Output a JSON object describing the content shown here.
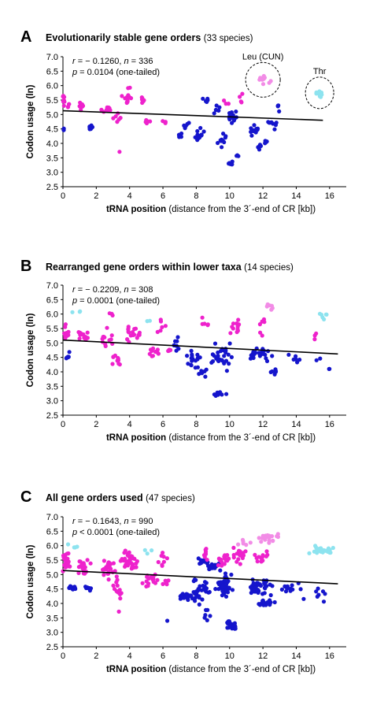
{
  "panels": [
    {
      "letter": "A",
      "title": "Evolutionarily stable gene orders",
      "subtitle": "(33 species)",
      "stat_r_label": "r",
      "stat_r_value": " = − 0.1260, ",
      "stat_n_label": "n",
      "stat_n_value": " = 336",
      "stat_p_label": "p",
      "stat_p_value": " = 0.0104 (one-tailed)",
      "annotations": [
        {
          "text": "Leu (CUN)"
        },
        {
          "text": "Thr"
        }
      ]
    },
    {
      "letter": "B",
      "title": "Rearranged gene orders within lower taxa",
      "subtitle": "(14 species)",
      "stat_r_label": "r",
      "stat_r_value": " = − 0.2209, ",
      "stat_n_label": "n",
      "stat_n_value": " = 308",
      "stat_p_label": "p",
      "stat_p_value": " = 0.0001 (one-tailed)",
      "annotations": []
    },
    {
      "letter": "C",
      "title": "All gene orders used",
      "subtitle": "(47 species)",
      "stat_r_label": "r",
      "stat_r_value": " = − 0.1643, ",
      "stat_n_label": "n",
      "stat_n_value": " = 990",
      "stat_p_label": "p",
      "stat_p_value": " < 0.0001 (one-tailed)",
      "annotations": []
    }
  ],
  "colors": {
    "magenta": "#ee22cc",
    "blue": "#1515cc",
    "pink": "#f28ce6",
    "cyan": "#8de3ef",
    "trend": "#000000"
  },
  "chart_data": [
    {
      "type": "scatter",
      "panel": "A",
      "xlabel": "tRNA position",
      "xlabel_detail": "(distance from the 3´-end of CR [kb])",
      "ylabel": "Codon usage (ln)",
      "xlim": [
        0,
        17
      ],
      "ylim": [
        2.5,
        7.0
      ],
      "xticks": [
        0,
        2,
        4,
        6,
        8,
        10,
        12,
        14,
        16
      ],
      "yticks": [
        2.5,
        3.0,
        3.5,
        4.0,
        4.5,
        5.0,
        5.5,
        6.0,
        6.5,
        7.0
      ],
      "trend": {
        "x": [
          0,
          15.6
        ],
        "y": [
          5.13,
          4.8
        ]
      },
      "clusters": [
        {
          "group": "magenta",
          "x": 0.05,
          "y": 5.5,
          "sx": 0.06,
          "sy": 0.25,
          "n": 10
        },
        {
          "group": "blue",
          "x": 0.05,
          "y": 4.5,
          "sx": 0.05,
          "sy": 0.05,
          "n": 2
        },
        {
          "group": "magenta",
          "x": 0.35,
          "y": 5.3,
          "sx": 0.08,
          "sy": 0.08,
          "n": 4
        },
        {
          "group": "magenta",
          "x": 1.1,
          "y": 5.3,
          "sx": 0.2,
          "sy": 0.12,
          "n": 10
        },
        {
          "group": "blue",
          "x": 1.6,
          "y": 4.55,
          "sx": 0.15,
          "sy": 0.06,
          "n": 8
        },
        {
          "group": "magenta",
          "x": 2.6,
          "y": 5.2,
          "sx": 0.3,
          "sy": 0.12,
          "n": 10
        },
        {
          "group": "magenta",
          "x": 3.3,
          "y": 4.9,
          "sx": 0.2,
          "sy": 0.15,
          "n": 6
        },
        {
          "group": "magenta",
          "x": 3.4,
          "y": 3.7,
          "sx": 0.03,
          "sy": 0.03,
          "n": 1
        },
        {
          "group": "magenta",
          "x": 3.9,
          "y": 5.6,
          "sx": 0.25,
          "sy": 0.25,
          "n": 16
        },
        {
          "group": "magenta",
          "x": 4.7,
          "y": 5.5,
          "sx": 0.15,
          "sy": 0.2,
          "n": 6
        },
        {
          "group": "magenta",
          "x": 5.1,
          "y": 4.78,
          "sx": 0.15,
          "sy": 0.08,
          "n": 6
        },
        {
          "group": "magenta",
          "x": 6.1,
          "y": 4.72,
          "sx": 0.15,
          "sy": 0.05,
          "n": 4
        },
        {
          "group": "blue",
          "x": 7.0,
          "y": 4.25,
          "sx": 0.2,
          "sy": 0.1,
          "n": 6
        },
        {
          "group": "blue",
          "x": 7.4,
          "y": 4.6,
          "sx": 0.2,
          "sy": 0.1,
          "n": 6
        },
        {
          "group": "blue",
          "x": 8.2,
          "y": 4.3,
          "sx": 0.3,
          "sy": 0.3,
          "n": 14
        },
        {
          "group": "blue",
          "x": 8.5,
          "y": 5.45,
          "sx": 0.2,
          "sy": 0.1,
          "n": 5
        },
        {
          "group": "blue",
          "x": 9.3,
          "y": 5.2,
          "sx": 0.3,
          "sy": 0.2,
          "n": 6
        },
        {
          "group": "blue",
          "x": 9.6,
          "y": 4.1,
          "sx": 0.3,
          "sy": 0.3,
          "n": 10
        },
        {
          "group": "blue",
          "x": 10.2,
          "y": 4.9,
          "sx": 0.3,
          "sy": 0.25,
          "n": 14
        },
        {
          "group": "blue",
          "x": 10.1,
          "y": 3.3,
          "sx": 0.15,
          "sy": 0.08,
          "n": 8
        },
        {
          "group": "blue",
          "x": 10.5,
          "y": 3.6,
          "sx": 0.1,
          "sy": 0.1,
          "n": 3
        },
        {
          "group": "magenta",
          "x": 9.7,
          "y": 5.45,
          "sx": 0.15,
          "sy": 0.1,
          "n": 3
        },
        {
          "group": "magenta",
          "x": 10.7,
          "y": 5.6,
          "sx": 0.15,
          "sy": 0.15,
          "n": 4
        },
        {
          "group": "blue",
          "x": 11.5,
          "y": 4.45,
          "sx": 0.25,
          "sy": 0.2,
          "n": 10
        },
        {
          "group": "blue",
          "x": 11.8,
          "y": 3.9,
          "sx": 0.15,
          "sy": 0.08,
          "n": 6
        },
        {
          "group": "blue",
          "x": 12.2,
          "y": 4.1,
          "sx": 0.15,
          "sy": 0.1,
          "n": 5
        },
        {
          "group": "blue",
          "x": 12.6,
          "y": 4.7,
          "sx": 0.3,
          "sy": 0.15,
          "n": 8
        },
        {
          "group": "blue",
          "x": 12.9,
          "y": 5.3,
          "sx": 0.15,
          "sy": 0.15,
          "n": 4
        },
        {
          "group": "pink",
          "x": 12.0,
          "y": 6.25,
          "sx": 0.4,
          "sy": 0.18,
          "n": 12
        },
        {
          "group": "cyan",
          "x": 15.4,
          "y": 5.75,
          "sx": 0.18,
          "sy": 0.15,
          "n": 10
        }
      ]
    },
    {
      "type": "scatter",
      "panel": "B",
      "xlabel": "tRNA position",
      "xlabel_detail": "(distance from the 3´-end of CR [kb])",
      "ylabel": "Codon usage (ln)",
      "xlim": [
        0,
        17
      ],
      "ylim": [
        2.5,
        7.0
      ],
      "xticks": [
        0,
        2,
        4,
        6,
        8,
        10,
        12,
        14,
        16
      ],
      "yticks": [
        2.5,
        3.0,
        3.5,
        4.0,
        4.5,
        5.0,
        5.5,
        6.0,
        6.5,
        7.0
      ],
      "trend": {
        "x": [
          0,
          16.5
        ],
        "y": [
          5.1,
          4.62
        ]
      },
      "clusters": [
        {
          "group": "magenta",
          "x": 0.2,
          "y": 5.4,
          "sx": 0.15,
          "sy": 0.25,
          "n": 14
        },
        {
          "group": "blue",
          "x": 0.3,
          "y": 4.55,
          "sx": 0.15,
          "sy": 0.1,
          "n": 6
        },
        {
          "group": "magenta",
          "x": 1.3,
          "y": 5.3,
          "sx": 0.4,
          "sy": 0.25,
          "n": 12
        },
        {
          "group": "magenta",
          "x": 2.7,
          "y": 5.2,
          "sx": 0.4,
          "sy": 0.35,
          "n": 12
        },
        {
          "group": "magenta",
          "x": 3.3,
          "y": 4.4,
          "sx": 0.3,
          "sy": 0.4,
          "n": 10
        },
        {
          "group": "magenta",
          "x": 3.0,
          "y": 6.0,
          "sx": 0.3,
          "sy": 0.1,
          "n": 3
        },
        {
          "group": "magenta",
          "x": 4.3,
          "y": 5.3,
          "sx": 0.5,
          "sy": 0.3,
          "n": 18
        },
        {
          "group": "magenta",
          "x": 5.5,
          "y": 4.7,
          "sx": 0.35,
          "sy": 0.15,
          "n": 10
        },
        {
          "group": "magenta",
          "x": 6.0,
          "y": 5.6,
          "sx": 0.3,
          "sy": 0.2,
          "n": 6
        },
        {
          "group": "magenta",
          "x": 6.4,
          "y": 4.7,
          "sx": 0.15,
          "sy": 0.15,
          "n": 4
        },
        {
          "group": "blue",
          "x": 6.8,
          "y": 5.0,
          "sx": 0.25,
          "sy": 0.35,
          "n": 8
        },
        {
          "group": "blue",
          "x": 7.8,
          "y": 4.4,
          "sx": 0.4,
          "sy": 0.3,
          "n": 18
        },
        {
          "group": "blue",
          "x": 9.4,
          "y": 4.5,
          "sx": 0.6,
          "sy": 0.35,
          "n": 28
        },
        {
          "group": "blue",
          "x": 9.2,
          "y": 3.25,
          "sx": 0.6,
          "sy": 0.06,
          "n": 9
        },
        {
          "group": "blue",
          "x": 8.4,
          "y": 3.9,
          "sx": 0.3,
          "sy": 0.2,
          "n": 6
        },
        {
          "group": "magenta",
          "x": 10.4,
          "y": 5.5,
          "sx": 0.35,
          "sy": 0.25,
          "n": 12
        },
        {
          "group": "magenta",
          "x": 8.5,
          "y": 5.7,
          "sx": 0.3,
          "sy": 0.25,
          "n": 5
        },
        {
          "group": "blue",
          "x": 11.8,
          "y": 4.6,
          "sx": 0.7,
          "sy": 0.25,
          "n": 22
        },
        {
          "group": "blue",
          "x": 12.7,
          "y": 4.0,
          "sx": 0.5,
          "sy": 0.1,
          "n": 6
        },
        {
          "group": "blue",
          "x": 14.0,
          "y": 4.5,
          "sx": 0.4,
          "sy": 0.15,
          "n": 6
        },
        {
          "group": "blue",
          "x": 15.5,
          "y": 4.3,
          "sx": 0.5,
          "sy": 0.2,
          "n": 4
        },
        {
          "group": "magenta",
          "x": 12.0,
          "y": 5.6,
          "sx": 0.35,
          "sy": 0.25,
          "n": 6
        },
        {
          "group": "magenta",
          "x": 15.3,
          "y": 5.2,
          "sx": 0.25,
          "sy": 0.1,
          "n": 3
        },
        {
          "group": "pink",
          "x": 12.4,
          "y": 6.25,
          "sx": 0.25,
          "sy": 0.1,
          "n": 6
        },
        {
          "group": "cyan",
          "x": 15.7,
          "y": 5.9,
          "sx": 0.5,
          "sy": 0.1,
          "n": 6
        },
        {
          "group": "cyan",
          "x": 0.8,
          "y": 6.1,
          "sx": 0.5,
          "sy": 0.05,
          "n": 3
        },
        {
          "group": "cyan",
          "x": 5.1,
          "y": 5.75,
          "sx": 0.2,
          "sy": 0.05,
          "n": 2
        }
      ]
    },
    {
      "type": "scatter",
      "panel": "C",
      "xlabel": "tRNA position",
      "xlabel_detail": "(distance from the 3´-end of CR [kb])",
      "ylabel": "Codon usage (ln)",
      "xlim": [
        0,
        17
      ],
      "ylim": [
        2.5,
        7.0
      ],
      "xticks": [
        0,
        2,
        4,
        6,
        8,
        10,
        12,
        14,
        16
      ],
      "yticks": [
        2.5,
        3.0,
        3.5,
        4.0,
        4.5,
        5.0,
        5.5,
        6.0,
        6.5,
        7.0
      ],
      "trend": {
        "x": [
          0,
          16.5
        ],
        "y": [
          5.14,
          4.68
        ]
      },
      "clusters": [
        {
          "group": "magenta",
          "x": 0.2,
          "y": 5.45,
          "sx": 0.2,
          "sy": 0.25,
          "n": 24
        },
        {
          "group": "blue",
          "x": 0.6,
          "y": 4.55,
          "sx": 0.35,
          "sy": 0.07,
          "n": 16
        },
        {
          "group": "blue",
          "x": 1.5,
          "y": 4.5,
          "sx": 0.2,
          "sy": 0.08,
          "n": 10
        },
        {
          "group": "magenta",
          "x": 1.2,
          "y": 5.3,
          "sx": 0.35,
          "sy": 0.25,
          "n": 22
        },
        {
          "group": "magenta",
          "x": 2.7,
          "y": 5.2,
          "sx": 0.35,
          "sy": 0.3,
          "n": 24
        },
        {
          "group": "magenta",
          "x": 3.3,
          "y": 4.5,
          "sx": 0.25,
          "sy": 0.35,
          "n": 14
        },
        {
          "group": "magenta",
          "x": 3.4,
          "y": 3.75,
          "sx": 0.05,
          "sy": 0.05,
          "n": 1
        },
        {
          "group": "magenta",
          "x": 4.0,
          "y": 5.45,
          "sx": 0.4,
          "sy": 0.3,
          "n": 34
        },
        {
          "group": "magenta",
          "x": 5.2,
          "y": 4.8,
          "sx": 0.35,
          "sy": 0.2,
          "n": 18
        },
        {
          "group": "magenta",
          "x": 6.0,
          "y": 5.5,
          "sx": 0.3,
          "sy": 0.25,
          "n": 8
        },
        {
          "group": "magenta",
          "x": 6.2,
          "y": 4.72,
          "sx": 0.2,
          "sy": 0.08,
          "n": 6
        },
        {
          "group": "blue",
          "x": 6.3,
          "y": 3.4,
          "sx": 0.05,
          "sy": 0.05,
          "n": 1
        },
        {
          "group": "blue",
          "x": 7.3,
          "y": 4.25,
          "sx": 0.35,
          "sy": 0.1,
          "n": 20
        },
        {
          "group": "blue",
          "x": 8.2,
          "y": 4.45,
          "sx": 0.45,
          "sy": 0.35,
          "n": 34
        },
        {
          "group": "blue",
          "x": 8.4,
          "y": 5.45,
          "sx": 0.3,
          "sy": 0.08,
          "n": 12
        },
        {
          "group": "blue",
          "x": 9.0,
          "y": 5.3,
          "sx": 0.4,
          "sy": 0.2,
          "n": 14
        },
        {
          "group": "blue",
          "x": 9.7,
          "y": 4.6,
          "sx": 0.5,
          "sy": 0.35,
          "n": 48
        },
        {
          "group": "blue",
          "x": 10.1,
          "y": 3.25,
          "sx": 0.35,
          "sy": 0.12,
          "n": 24
        },
        {
          "group": "blue",
          "x": 8.6,
          "y": 3.6,
          "sx": 0.3,
          "sy": 0.2,
          "n": 6
        },
        {
          "group": "magenta",
          "x": 9.7,
          "y": 5.5,
          "sx": 0.4,
          "sy": 0.2,
          "n": 16
        },
        {
          "group": "magenta",
          "x": 10.6,
          "y": 5.65,
          "sx": 0.35,
          "sy": 0.25,
          "n": 18
        },
        {
          "group": "magenta",
          "x": 8.5,
          "y": 5.7,
          "sx": 0.3,
          "sy": 0.25,
          "n": 8
        },
        {
          "group": "blue",
          "x": 11.8,
          "y": 4.55,
          "sx": 0.6,
          "sy": 0.25,
          "n": 42
        },
        {
          "group": "blue",
          "x": 12.2,
          "y": 4.0,
          "sx": 0.5,
          "sy": 0.1,
          "n": 16
        },
        {
          "group": "blue",
          "x": 13.6,
          "y": 4.55,
          "sx": 0.5,
          "sy": 0.2,
          "n": 14
        },
        {
          "group": "blue",
          "x": 15.2,
          "y": 4.3,
          "sx": 0.6,
          "sy": 0.2,
          "n": 8
        },
        {
          "group": "magenta",
          "x": 12.0,
          "y": 5.6,
          "sx": 0.4,
          "sy": 0.25,
          "n": 14
        },
        {
          "group": "pink",
          "x": 12.4,
          "y": 6.25,
          "sx": 0.5,
          "sy": 0.12,
          "n": 22
        },
        {
          "group": "pink",
          "x": 11.0,
          "y": 6.1,
          "sx": 0.4,
          "sy": 0.1,
          "n": 6
        },
        {
          "group": "cyan",
          "x": 15.5,
          "y": 5.85,
          "sx": 0.6,
          "sy": 0.12,
          "n": 28
        },
        {
          "group": "cyan",
          "x": 0.8,
          "y": 6.0,
          "sx": 0.5,
          "sy": 0.08,
          "n": 4
        },
        {
          "group": "cyan",
          "x": 5.0,
          "y": 5.8,
          "sx": 0.3,
          "sy": 0.08,
          "n": 3
        }
      ]
    }
  ]
}
